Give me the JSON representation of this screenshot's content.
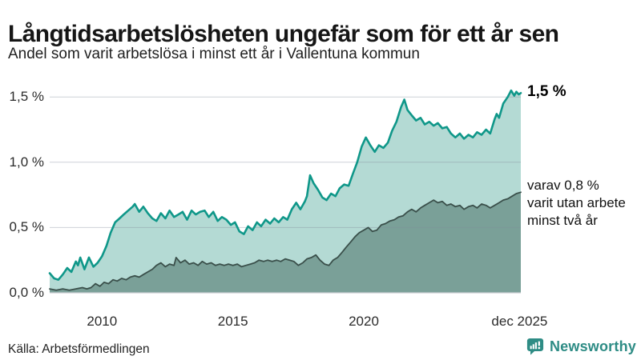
{
  "header": {
    "title": "Långtidsarbetslösheten ungefär som för ett år sen",
    "subtitle": "Andel som varit arbetslösa i minst ett år i Vallentuna kommun"
  },
  "annotations": {
    "end_value_label": "1,5 %",
    "varav_lines": [
      "varav 0,8 %",
      "varit utan arbete",
      "minst två år"
    ]
  },
  "footer": {
    "source": "Källa: Arbetsförmedlingen",
    "brand": "Newsworthy"
  },
  "colors": {
    "accent_teal_line": "#0f9789",
    "accent_teal_fill": "#b4dad4",
    "dark_series_line": "#3a4f4a",
    "dark_series_fill": "#7aa098",
    "brand_teal": "#2e8c85",
    "gridline": "rgba(130,140,155,0.40)",
    "baseline": "#c6cbd0",
    "text": "#161616"
  },
  "chart_data": {
    "type": "area",
    "title": "Långtidsarbetslösheten ungefär som för ett år sen",
    "subtitle": "Andel som varit arbetslösa i minst ett år i Vallentuna kommun",
    "xlabel": "",
    "ylabel": "",
    "unit": "%",
    "xlim": [
      2008,
      2026
    ],
    "ylim": [
      0,
      1.63
    ],
    "grid": true,
    "legend_position": "annotations-right",
    "x_ticks": [
      {
        "value": 2010,
        "label": "2010"
      },
      {
        "value": 2015,
        "label": "2015"
      },
      {
        "value": 2020,
        "label": "2020"
      },
      {
        "value": 2025.95,
        "label": "dec 2025"
      }
    ],
    "y_ticks": [
      {
        "value": 0,
        "label": "0,0 %"
      },
      {
        "value": 0.5,
        "label": "0,5 %"
      },
      {
        "value": 1.0,
        "label": "1,0 %"
      },
      {
        "value": 1.5,
        "label": "1,5 %"
      }
    ],
    "series": [
      {
        "id": "minst-ett-ar",
        "name": "Andel arbetslösa minst ett år",
        "end_value": 1.5,
        "color": "#0f9789",
        "fill": "#b4dad4",
        "line_width": 2.6,
        "points": [
          [
            2008.0,
            0.15
          ],
          [
            2008.17,
            0.11
          ],
          [
            2008.33,
            0.1
          ],
          [
            2008.5,
            0.14
          ],
          [
            2008.67,
            0.19
          ],
          [
            2008.83,
            0.16
          ],
          [
            2009.0,
            0.24
          ],
          [
            2009.08,
            0.21
          ],
          [
            2009.17,
            0.27
          ],
          [
            2009.33,
            0.18
          ],
          [
            2009.5,
            0.27
          ],
          [
            2009.67,
            0.2
          ],
          [
            2009.83,
            0.23
          ],
          [
            2010.0,
            0.28
          ],
          [
            2010.17,
            0.36
          ],
          [
            2010.33,
            0.46
          ],
          [
            2010.5,
            0.54
          ],
          [
            2010.67,
            0.57
          ],
          [
            2010.83,
            0.6
          ],
          [
            2011.0,
            0.63
          ],
          [
            2011.17,
            0.66
          ],
          [
            2011.25,
            0.68
          ],
          [
            2011.42,
            0.62
          ],
          [
            2011.58,
            0.66
          ],
          [
            2011.75,
            0.61
          ],
          [
            2011.92,
            0.57
          ],
          [
            2012.08,
            0.55
          ],
          [
            2012.25,
            0.61
          ],
          [
            2012.42,
            0.57
          ],
          [
            2012.58,
            0.63
          ],
          [
            2012.75,
            0.58
          ],
          [
            2012.92,
            0.6
          ],
          [
            2013.08,
            0.62
          ],
          [
            2013.25,
            0.56
          ],
          [
            2013.42,
            0.63
          ],
          [
            2013.58,
            0.6
          ],
          [
            2013.75,
            0.62
          ],
          [
            2013.92,
            0.63
          ],
          [
            2014.08,
            0.58
          ],
          [
            2014.25,
            0.62
          ],
          [
            2014.42,
            0.55
          ],
          [
            2014.58,
            0.58
          ],
          [
            2014.75,
            0.56
          ],
          [
            2014.92,
            0.52
          ],
          [
            2015.08,
            0.54
          ],
          [
            2015.25,
            0.47
          ],
          [
            2015.42,
            0.45
          ],
          [
            2015.58,
            0.51
          ],
          [
            2015.75,
            0.48
          ],
          [
            2015.92,
            0.54
          ],
          [
            2016.08,
            0.51
          ],
          [
            2016.25,
            0.56
          ],
          [
            2016.42,
            0.53
          ],
          [
            2016.58,
            0.57
          ],
          [
            2016.75,
            0.54
          ],
          [
            2016.92,
            0.58
          ],
          [
            2017.08,
            0.56
          ],
          [
            2017.25,
            0.64
          ],
          [
            2017.42,
            0.69
          ],
          [
            2017.58,
            0.64
          ],
          [
            2017.75,
            0.7
          ],
          [
            2017.83,
            0.74
          ],
          [
            2017.95,
            0.9
          ],
          [
            2018.08,
            0.84
          ],
          [
            2018.25,
            0.79
          ],
          [
            2018.42,
            0.73
          ],
          [
            2018.58,
            0.71
          ],
          [
            2018.75,
            0.76
          ],
          [
            2018.92,
            0.74
          ],
          [
            2019.08,
            0.8
          ],
          [
            2019.25,
            0.83
          ],
          [
            2019.42,
            0.82
          ],
          [
            2019.58,
            0.91
          ],
          [
            2019.75,
            1.0
          ],
          [
            2019.92,
            1.12
          ],
          [
            2020.08,
            1.19
          ],
          [
            2020.25,
            1.13
          ],
          [
            2020.42,
            1.08
          ],
          [
            2020.58,
            1.13
          ],
          [
            2020.75,
            1.11
          ],
          [
            2020.92,
            1.15
          ],
          [
            2021.08,
            1.24
          ],
          [
            2021.25,
            1.31
          ],
          [
            2021.42,
            1.42
          ],
          [
            2021.55,
            1.48
          ],
          [
            2021.67,
            1.4
          ],
          [
            2021.83,
            1.36
          ],
          [
            2022.0,
            1.32
          ],
          [
            2022.17,
            1.34
          ],
          [
            2022.33,
            1.29
          ],
          [
            2022.5,
            1.31
          ],
          [
            2022.67,
            1.28
          ],
          [
            2022.83,
            1.3
          ],
          [
            2023.0,
            1.26
          ],
          [
            2023.17,
            1.27
          ],
          [
            2023.33,
            1.22
          ],
          [
            2023.5,
            1.19
          ],
          [
            2023.67,
            1.22
          ],
          [
            2023.83,
            1.18
          ],
          [
            2024.0,
            1.21
          ],
          [
            2024.17,
            1.19
          ],
          [
            2024.33,
            1.23
          ],
          [
            2024.5,
            1.21
          ],
          [
            2024.67,
            1.25
          ],
          [
            2024.83,
            1.22
          ],
          [
            2025.0,
            1.33
          ],
          [
            2025.08,
            1.37
          ],
          [
            2025.17,
            1.34
          ],
          [
            2025.33,
            1.45
          ],
          [
            2025.5,
            1.5
          ],
          [
            2025.63,
            1.55
          ],
          [
            2025.75,
            1.51
          ],
          [
            2025.83,
            1.54
          ],
          [
            2025.92,
            1.52
          ],
          [
            2026.0,
            1.53
          ]
        ]
      },
      {
        "id": "minst-tva-ar",
        "name": "varav arbetslösa minst två år",
        "end_value": 0.8,
        "color": "#3a4f4a",
        "fill": "#7aa098",
        "line_width": 1.8,
        "points": [
          [
            2008.0,
            0.03
          ],
          [
            2008.25,
            0.02
          ],
          [
            2008.5,
            0.03
          ],
          [
            2008.75,
            0.02
          ],
          [
            2009.0,
            0.03
          ],
          [
            2009.25,
            0.04
          ],
          [
            2009.42,
            0.03
          ],
          [
            2009.58,
            0.04
          ],
          [
            2009.75,
            0.07
          ],
          [
            2009.92,
            0.05
          ],
          [
            2010.08,
            0.08
          ],
          [
            2010.25,
            0.07
          ],
          [
            2010.42,
            0.1
          ],
          [
            2010.58,
            0.09
          ],
          [
            2010.75,
            0.11
          ],
          [
            2010.92,
            0.1
          ],
          [
            2011.08,
            0.12
          ],
          [
            2011.25,
            0.13
          ],
          [
            2011.42,
            0.12
          ],
          [
            2011.58,
            0.14
          ],
          [
            2011.75,
            0.16
          ],
          [
            2011.92,
            0.18
          ],
          [
            2012.08,
            0.21
          ],
          [
            2012.25,
            0.23
          ],
          [
            2012.42,
            0.2
          ],
          [
            2012.58,
            0.22
          ],
          [
            2012.75,
            0.21
          ],
          [
            2012.83,
            0.27
          ],
          [
            2013.0,
            0.23
          ],
          [
            2013.17,
            0.25
          ],
          [
            2013.33,
            0.22
          ],
          [
            2013.5,
            0.23
          ],
          [
            2013.67,
            0.21
          ],
          [
            2013.83,
            0.24
          ],
          [
            2014.0,
            0.22
          ],
          [
            2014.17,
            0.23
          ],
          [
            2014.33,
            0.21
          ],
          [
            2014.5,
            0.22
          ],
          [
            2014.67,
            0.21
          ],
          [
            2014.83,
            0.22
          ],
          [
            2015.0,
            0.21
          ],
          [
            2015.17,
            0.22
          ],
          [
            2015.33,
            0.2
          ],
          [
            2015.5,
            0.21
          ],
          [
            2015.67,
            0.22
          ],
          [
            2015.83,
            0.23
          ],
          [
            2016.0,
            0.25
          ],
          [
            2016.17,
            0.24
          ],
          [
            2016.33,
            0.25
          ],
          [
            2016.5,
            0.24
          ],
          [
            2016.67,
            0.25
          ],
          [
            2016.83,
            0.24
          ],
          [
            2017.0,
            0.26
          ],
          [
            2017.17,
            0.25
          ],
          [
            2017.33,
            0.24
          ],
          [
            2017.5,
            0.21
          ],
          [
            2017.67,
            0.23
          ],
          [
            2017.83,
            0.26
          ],
          [
            2018.0,
            0.27
          ],
          [
            2018.17,
            0.29
          ],
          [
            2018.33,
            0.25
          ],
          [
            2018.5,
            0.22
          ],
          [
            2018.67,
            0.21
          ],
          [
            2018.83,
            0.25
          ],
          [
            2019.0,
            0.27
          ],
          [
            2019.17,
            0.31
          ],
          [
            2019.33,
            0.35
          ],
          [
            2019.5,
            0.39
          ],
          [
            2019.67,
            0.43
          ],
          [
            2019.83,
            0.46
          ],
          [
            2020.0,
            0.48
          ],
          [
            2020.17,
            0.5
          ],
          [
            2020.33,
            0.47
          ],
          [
            2020.5,
            0.48
          ],
          [
            2020.67,
            0.52
          ],
          [
            2020.83,
            0.53
          ],
          [
            2021.0,
            0.55
          ],
          [
            2021.17,
            0.56
          ],
          [
            2021.33,
            0.58
          ],
          [
            2021.5,
            0.59
          ],
          [
            2021.67,
            0.62
          ],
          [
            2021.83,
            0.64
          ],
          [
            2022.0,
            0.62
          ],
          [
            2022.17,
            0.65
          ],
          [
            2022.33,
            0.67
          ],
          [
            2022.5,
            0.69
          ],
          [
            2022.67,
            0.71
          ],
          [
            2022.83,
            0.69
          ],
          [
            2023.0,
            0.7
          ],
          [
            2023.17,
            0.67
          ],
          [
            2023.33,
            0.68
          ],
          [
            2023.5,
            0.66
          ],
          [
            2023.67,
            0.67
          ],
          [
            2023.83,
            0.64
          ],
          [
            2024.0,
            0.66
          ],
          [
            2024.17,
            0.67
          ],
          [
            2024.33,
            0.65
          ],
          [
            2024.5,
            0.68
          ],
          [
            2024.67,
            0.67
          ],
          [
            2024.83,
            0.65
          ],
          [
            2025.0,
            0.67
          ],
          [
            2025.17,
            0.69
          ],
          [
            2025.33,
            0.71
          ],
          [
            2025.5,
            0.72
          ],
          [
            2025.67,
            0.74
          ],
          [
            2025.83,
            0.76
          ],
          [
            2026.0,
            0.77
          ]
        ]
      }
    ]
  }
}
